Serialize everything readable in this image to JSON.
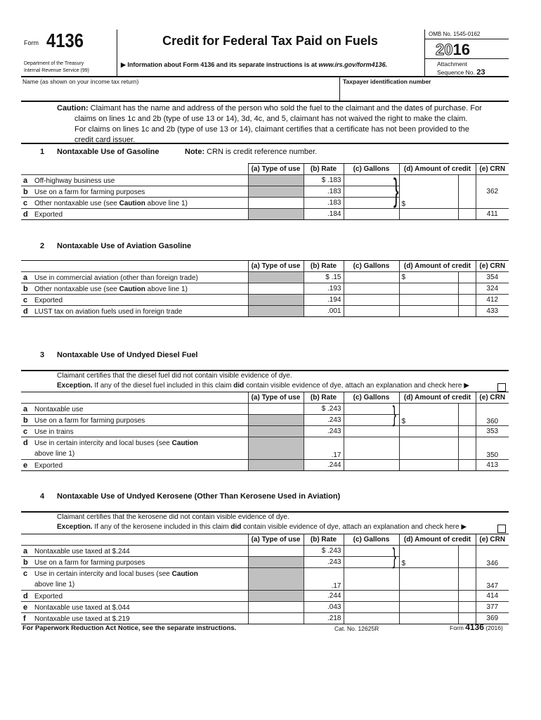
{
  "header": {
    "form_label": "Form",
    "form_number": "4136",
    "dept_line1": "Department of the Treasury",
    "dept_line2": "Internal Revenue Service  (99)",
    "title": "Credit for Federal Tax Paid on Fuels",
    "info_prefix": "▶ Information about Form 4136 and its separate instructions is at ",
    "info_url": "www.irs.gov/form4136.",
    "omb": "OMB No. 1545-0162",
    "year_outline": "20",
    "year_bold": "16",
    "attachment": "Attachment",
    "sequence_label": "Sequence No.",
    "sequence_number": "23"
  },
  "fields": {
    "name_label": "Name (as shown on your income tax return)",
    "name_value": "",
    "tin_label": "Taxpayer identification number",
    "tin_value": ""
  },
  "caution": {
    "label": "Caution:",
    "line1": "Claimant has the name and address of the person who sold the fuel to the claimant and the dates of purchase. For",
    "line2": "claims on lines 1c and 2b (type of use 13 or 14), 3d, 4c, and 5, claimant has not waived the right to make the claim.",
    "line3": "For claims on lines 1c and 2b (type of use 13 or 14), claimant certifies that a certificate has not been provided to the",
    "line4": "credit card issuer."
  },
  "columns": [
    "(a) Type of use",
    "(b) Rate",
    "(c) Gallons",
    "(d) Amount of credit",
    "(e) CRN"
  ],
  "dollar": "$",
  "caution_word": "Caution",
  "sections": [
    {
      "number": "1",
      "title": "Nontaxable Use of Gasoline",
      "note_label": "Note:",
      "note_text": " CRN is credit reference number.",
      "rows": [
        {
          "letter": "a",
          "desc": "Off-highway business use",
          "rate": "$ .183",
          "crn": ""
        },
        {
          "letter": "b",
          "desc": "Use on a farm for farming purposes",
          "rate": ".183",
          "crn": "362"
        },
        {
          "letter": "c",
          "desc_pre": "Other nontaxable use (see ",
          "desc_post": " above line 1)",
          "rate": ".183",
          "crn": ""
        },
        {
          "letter": "d",
          "desc": "Exported",
          "rate": ".184",
          "crn": "411"
        }
      ]
    },
    {
      "number": "2",
      "title": "Nontaxable Use of Aviation Gasoline",
      "rows": [
        {
          "letter": "a",
          "desc": "Use in commercial aviation (other than foreign trade)",
          "rate": "$ .15",
          "crn": "354"
        },
        {
          "letter": "b",
          "desc_pre": "Other nontaxable use (see ",
          "desc_post": " above line 1)",
          "rate": ".193",
          "crn": "324"
        },
        {
          "letter": "c",
          "desc": "Exported",
          "rate": ".194",
          "crn": "412"
        },
        {
          "letter": "d",
          "desc": "LUST tax on aviation fuels used in foreign trade",
          "rate": ".001",
          "crn": "433"
        }
      ]
    },
    {
      "number": "3",
      "title": "Nontaxable Use of Undyed Diesel Fuel",
      "certify": "Claimant certifies that the diesel fuel did not contain visible evidence of dye.",
      "exception_label": "Exception.",
      "exception_pre": " If any of the diesel fuel included in this claim ",
      "exception_bold": "did",
      "exception_post": " contain visible evidence of dye, attach an explanation and check here ▶",
      "rows": [
        {
          "letter": "a",
          "desc": "Nontaxable use",
          "rate": "$ .243",
          "crn": ""
        },
        {
          "letter": "b",
          "desc": "Use on a farm for farming purposes",
          "rate": ".243",
          "crn": "360"
        },
        {
          "letter": "c",
          "desc": "Use in trains",
          "rate": ".243",
          "crn": "353"
        },
        {
          "letter": "d",
          "desc_pre": "Use in certain intercity and local buses (see ",
          "desc_post2": "above line 1)",
          "rate": ".17",
          "crn": "350"
        },
        {
          "letter": "e",
          "desc": "Exported",
          "rate": ".244",
          "crn": "413"
        }
      ]
    },
    {
      "number": "4",
      "title": "Nontaxable Use of Undyed Kerosene (Other Than Kerosene Used in Aviation)",
      "certify": "Claimant certifies that the kerosene did not contain visible evidence of dye.",
      "exception_label": "Exception.",
      "exception_pre": " If any of the kerosene included in this claim ",
      "exception_bold": "did",
      "exception_post": " contain visible evidence of dye, attach an explanation and check here ▶",
      "rows": [
        {
          "letter": "a",
          "desc": "Nontaxable use taxed at $.244",
          "rate": "$ .243",
          "crn": ""
        },
        {
          "letter": "b",
          "desc": "Use on a farm for farming purposes",
          "rate": ".243",
          "crn": "346"
        },
        {
          "letter": "c",
          "desc_pre": "Use in certain intercity and local buses (see ",
          "desc_post2": "above line 1)",
          "rate": ".17",
          "crn": "347"
        },
        {
          "letter": "d",
          "desc": "Exported",
          "rate": ".244",
          "crn": "414"
        },
        {
          "letter": "e",
          "desc": "Nontaxable use taxed at $.044",
          "rate": ".043",
          "crn": "377"
        },
        {
          "letter": "f",
          "desc": "Nontaxable use taxed at $.219",
          "rate": ".218",
          "crn": "369"
        }
      ]
    }
  ],
  "footer": {
    "paperwork": "For Paperwork Reduction Act Notice, see the separate instructions.",
    "cat_no": "Cat. No. 12625R",
    "form_label": "Form ",
    "form_number": "4136",
    "year": " (2016)"
  }
}
